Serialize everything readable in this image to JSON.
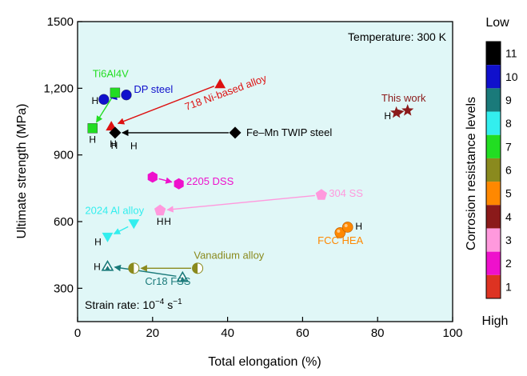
{
  "chart_data": {
    "type": "scatter",
    "xlabel": "Total elongation (%)",
    "ylabel": "Ultimate strength (MPa)",
    "xlim": [
      0,
      100
    ],
    "ylim": [
      150,
      1500
    ],
    "x_ticks": [
      "0",
      "20",
      "40",
      "60",
      "80",
      "100"
    ],
    "y_ticks": [
      "300",
      "600",
      "900",
      "1,200",
      "1500"
    ],
    "grid": false,
    "plot_background": "#e0f7f7",
    "annotations": {
      "temperature": "Temperature: 300 K",
      "strain_rate": "Strain rate: 10",
      "strain_rate_exp": "−4",
      "strain_rate_unit": " s",
      "strain_rate_unit_exp": "−1",
      "hydrogen_marker": "H"
    },
    "colorbar": {
      "title": "Corrosion resistance levels",
      "top_label": "Low",
      "bottom_label": "High",
      "levels": [
        {
          "level": "11",
          "color": "#000000"
        },
        {
          "level": "10",
          "color": "#1010cc"
        },
        {
          "level": "9",
          "color": "#1a7a7a"
        },
        {
          "level": "8",
          "color": "#33eeee"
        },
        {
          "level": "7",
          "color": "#22dd22"
        },
        {
          "level": "6",
          "color": "#8a8a1e"
        },
        {
          "level": "5",
          "color": "#ff8800"
        },
        {
          "level": "4",
          "color": "#8b1a1a"
        },
        {
          "level": "3",
          "color": "#ff99dd"
        },
        {
          "level": "2",
          "color": "#ee11cc"
        },
        {
          "level": "1",
          "color": "#dd3322"
        }
      ]
    },
    "series": [
      {
        "name": "Ti6Al4V",
        "color": "#22dd22",
        "marker": "square",
        "values": [
          {
            "x": 10,
            "y": 1180
          },
          {
            "x": 4,
            "y": 1020
          }
        ]
      },
      {
        "name": "DP steel",
        "color": "#1010cc",
        "marker": "circle",
        "values": [
          {
            "x": 13,
            "y": 1170
          },
          {
            "x": 7,
            "y": 1150
          }
        ]
      },
      {
        "name": "718 Ni-based alloy",
        "color": "#dd1111",
        "marker": "triangle-up",
        "values": [
          {
            "x": 38,
            "y": 1220
          },
          {
            "x": 9,
            "y": 1030
          }
        ]
      },
      {
        "name": "Fe–Mn TWIP steel",
        "color": "#000000",
        "marker": "diamond",
        "values": [
          {
            "x": 42,
            "y": 1000
          },
          {
            "x": 10,
            "y": 1000
          }
        ]
      },
      {
        "name": "This work",
        "color": "#8b1a1a",
        "marker": "star",
        "values": [
          {
            "x": 88,
            "y": 1100
          },
          {
            "x": 85,
            "y": 1090
          }
        ]
      },
      {
        "name": "2205 DSS",
        "color": "#ee11cc",
        "marker": "hexagon",
        "values": [
          {
            "x": 20,
            "y": 800
          },
          {
            "x": 27,
            "y": 770
          }
        ]
      },
      {
        "name": "304 SS",
        "color": "#ff99dd",
        "marker": "pentagon",
        "values": [
          {
            "x": 65,
            "y": 720
          },
          {
            "x": 22,
            "y": 650
          }
        ]
      },
      {
        "name": "2024 Al alloy",
        "color": "#33eeee",
        "marker": "triangle-down",
        "values": [
          {
            "x": 15,
            "y": 590
          },
          {
            "x": 8,
            "y": 530
          }
        ]
      },
      {
        "name": "FCC HEA",
        "color": "#ff8800",
        "marker": "sphere",
        "values": [
          {
            "x": 70,
            "y": 550
          },
          {
            "x": 72,
            "y": 575
          }
        ]
      },
      {
        "name": "Vanadium alloy",
        "color": "#8a8a1e",
        "marker": "half-circle",
        "values": [
          {
            "x": 32,
            "y": 390
          },
          {
            "x": 15,
            "y": 390
          }
        ]
      },
      {
        "name": "Cr18 FSS",
        "color": "#1a7a7a",
        "marker": "open-triangle",
        "values": [
          {
            "x": 28,
            "y": 350
          },
          {
            "x": 8,
            "y": 400
          }
        ]
      }
    ]
  }
}
